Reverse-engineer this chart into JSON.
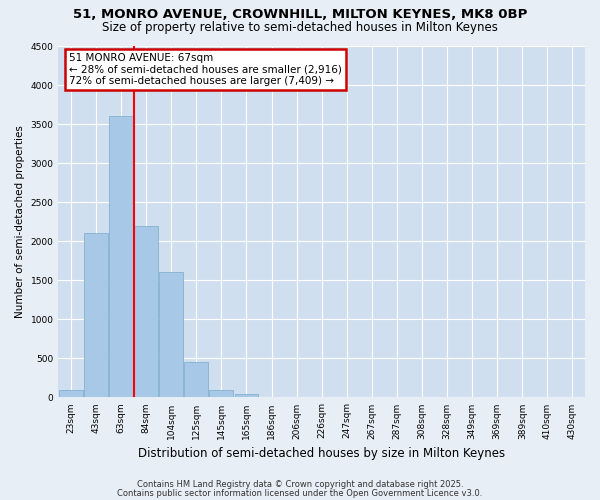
{
  "title": "51, MONRO AVENUE, CROWNHILL, MILTON KEYNES, MK8 0BP",
  "subtitle": "Size of property relative to semi-detached houses in Milton Keynes",
  "xlabel": "Distribution of semi-detached houses by size in Milton Keynes",
  "ylabel": "Number of semi-detached properties",
  "fig_bg_color": "#e8eef5",
  "plot_bg_color": "#d0dff0",
  "bar_color": "#a8c8e8",
  "bar_edge_color": "#7aaac8",
  "categories": [
    "23sqm",
    "43sqm",
    "63sqm",
    "84sqm",
    "104sqm",
    "125sqm",
    "145sqm",
    "165sqm",
    "186sqm",
    "206sqm",
    "226sqm",
    "247sqm",
    "267sqm",
    "287sqm",
    "308sqm",
    "328sqm",
    "349sqm",
    "369sqm",
    "389sqm",
    "410sqm",
    "430sqm"
  ],
  "values": [
    100,
    2100,
    3600,
    2200,
    1600,
    450,
    100,
    50,
    10,
    5,
    2,
    1,
    0,
    0,
    0,
    0,
    0,
    0,
    0,
    0,
    0
  ],
  "ylim": [
    0,
    4500
  ],
  "yticks": [
    0,
    500,
    1000,
    1500,
    2000,
    2500,
    3000,
    3500,
    4000,
    4500
  ],
  "property_label": "51 MONRO AVENUE: 67sqm",
  "pct_smaller": 28,
  "pct_larger": 72,
  "n_smaller": "2,916",
  "n_larger": "7,409",
  "red_line_bar_index": 2,
  "annotation_box_color": "#ffffff",
  "annotation_border_color": "#cc0000",
  "footnote1": "Contains HM Land Registry data © Crown copyright and database right 2025.",
  "footnote2": "Contains public sector information licensed under the Open Government Licence v3.0."
}
